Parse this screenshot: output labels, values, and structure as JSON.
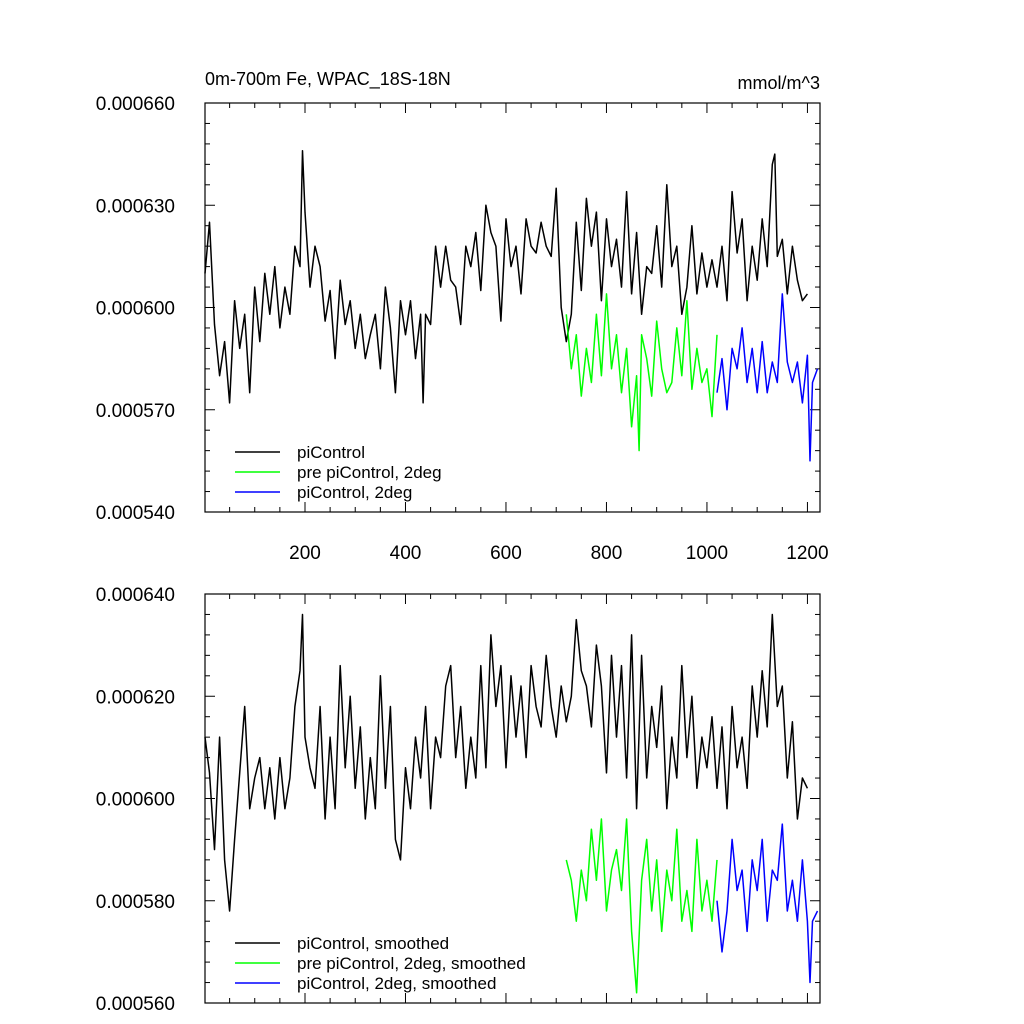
{
  "chart_data": [
    {
      "type": "line",
      "title": "0m-700m Fe, WPAC_18S-18N",
      "units": "mmol/m^3",
      "xlim": [
        1,
        1225
      ],
      "ylim": [
        0.00054,
        0.00066
      ],
      "xticks": [
        200,
        400,
        600,
        800,
        1000,
        1200
      ],
      "xticks_labeled": true,
      "yticks": [
        0.00054,
        0.00057,
        0.0006,
        0.00063,
        0.00066
      ],
      "ytick_labels": [
        "0.000540",
        "0.000570",
        "0.000600",
        "0.000630",
        "0.000660"
      ],
      "legend": {
        "placement": "bottom-left"
      },
      "series": [
        {
          "name": "piControl",
          "color": "#000000",
          "x": [
            1,
            10,
            20,
            30,
            40,
            50,
            60,
            70,
            80,
            90,
            100,
            110,
            120,
            130,
            140,
            150,
            160,
            170,
            180,
            190,
            195,
            200,
            210,
            220,
            230,
            240,
            250,
            260,
            270,
            280,
            290,
            300,
            310,
            320,
            330,
            340,
            350,
            360,
            370,
            380,
            390,
            400,
            410,
            420,
            430,
            435,
            440,
            450,
            460,
            470,
            480,
            490,
            500,
            510,
            520,
            530,
            540,
            550,
            560,
            570,
            580,
            590,
            600,
            610,
            620,
            630,
            640,
            650,
            660,
            670,
            680,
            690,
            700,
            710,
            720,
            730,
            740,
            750,
            760,
            770,
            780,
            790,
            800,
            810,
            820,
            830,
            840,
            850,
            860,
            870,
            880,
            890,
            900,
            910,
            920,
            930,
            940,
            950,
            960,
            970,
            980,
            990,
            1000,
            1010,
            1020,
            1030,
            1040,
            1050,
            1060,
            1070,
            1080,
            1090,
            1100,
            1110,
            1120,
            1130,
            1135,
            1140,
            1150,
            1160,
            1170,
            1180,
            1190,
            1200
          ],
          "y": [
            0.00061,
            0.000625,
            0.000595,
            0.00058,
            0.00059,
            0.000572,
            0.000602,
            0.000588,
            0.000598,
            0.000575,
            0.000606,
            0.00059,
            0.00061,
            0.000598,
            0.000612,
            0.000594,
            0.000606,
            0.000598,
            0.000618,
            0.000612,
            0.000646,
            0.000628,
            0.000606,
            0.000618,
            0.000612,
            0.000596,
            0.000605,
            0.000585,
            0.000608,
            0.000595,
            0.000602,
            0.000588,
            0.000598,
            0.000585,
            0.000592,
            0.000598,
            0.000582,
            0.000606,
            0.000594,
            0.000575,
            0.000602,
            0.000592,
            0.000602,
            0.000585,
            0.000598,
            0.000572,
            0.000598,
            0.000595,
            0.000618,
            0.000606,
            0.000618,
            0.000608,
            0.000606,
            0.000595,
            0.000618,
            0.000612,
            0.000622,
            0.000605,
            0.00063,
            0.000622,
            0.000618,
            0.000596,
            0.000626,
            0.000612,
            0.000618,
            0.000604,
            0.000626,
            0.000618,
            0.000616,
            0.000625,
            0.000618,
            0.000615,
            0.000635,
            0.0006,
            0.00059,
            0.000598,
            0.000625,
            0.000605,
            0.000632,
            0.000618,
            0.000628,
            0.000602,
            0.000626,
            0.000612,
            0.00062,
            0.000606,
            0.000634,
            0.000604,
            0.000622,
            0.000598,
            0.000612,
            0.00061,
            0.000624,
            0.000606,
            0.000636,
            0.000612,
            0.000618,
            0.000598,
            0.000606,
            0.000624,
            0.000604,
            0.000616,
            0.000606,
            0.000614,
            0.000606,
            0.000618,
            0.000602,
            0.000634,
            0.000616,
            0.000626,
            0.000602,
            0.000618,
            0.000608,
            0.000626,
            0.000612,
            0.000642,
            0.000645,
            0.000615,
            0.00062,
            0.000604,
            0.000618,
            0.000608,
            0.000602,
            0.000604
          ]
        },
        {
          "name": "pre piControl, 2deg",
          "color": "#00ff00",
          "x": [
            720,
            730,
            740,
            750,
            760,
            770,
            780,
            790,
            800,
            810,
            820,
            830,
            840,
            850,
            860,
            865,
            870,
            880,
            890,
            900,
            910,
            920,
            930,
            940,
            950,
            960,
            970,
            980,
            990,
            1000,
            1010,
            1020
          ],
          "y": [
            0.000598,
            0.000582,
            0.000592,
            0.000574,
            0.000588,
            0.000578,
            0.000598,
            0.00058,
            0.000604,
            0.000582,
            0.000592,
            0.000575,
            0.000588,
            0.000565,
            0.00058,
            0.000558,
            0.000592,
            0.000585,
            0.000574,
            0.000596,
            0.000582,
            0.000575,
            0.000578,
            0.000594,
            0.00058,
            0.000602,
            0.000576,
            0.000588,
            0.000578,
            0.000582,
            0.000568,
            0.000592
          ]
        },
        {
          "name": "piControl, 2deg",
          "color": "#0000ff",
          "x": [
            1020,
            1030,
            1040,
            1050,
            1060,
            1070,
            1080,
            1090,
            1100,
            1110,
            1120,
            1130,
            1140,
            1150,
            1160,
            1170,
            1180,
            1190,
            1200,
            1205,
            1210,
            1220
          ],
          "y": [
            0.000575,
            0.000585,
            0.00057,
            0.000588,
            0.000582,
            0.000594,
            0.000578,
            0.000588,
            0.000575,
            0.00059,
            0.000575,
            0.000584,
            0.000578,
            0.000604,
            0.000584,
            0.000578,
            0.000584,
            0.000572,
            0.000586,
            0.000555,
            0.000578,
            0.000582
          ]
        }
      ]
    },
    {
      "type": "line",
      "title": "",
      "units": "",
      "xlim": [
        1,
        1225
      ],
      "ylim": [
        0.00056,
        0.00064
      ],
      "xticks": [
        200,
        400,
        600,
        800,
        1000,
        1200
      ],
      "xticks_labeled": false,
      "yticks": [
        0.00056,
        0.00058,
        0.0006,
        0.00062,
        0.00064
      ],
      "ytick_labels": [
        "0.000560",
        "0.000580",
        "0.000600",
        "0.000620",
        "0.000640"
      ],
      "legend": {
        "placement": "bottom-left"
      },
      "series": [
        {
          "name": "piControl, smoothed",
          "color": "#000000",
          "x": [
            1,
            10,
            20,
            30,
            40,
            50,
            60,
            70,
            80,
            90,
            100,
            110,
            120,
            130,
            140,
            150,
            160,
            170,
            180,
            190,
            195,
            200,
            210,
            220,
            230,
            240,
            250,
            260,
            270,
            280,
            290,
            300,
            310,
            320,
            330,
            340,
            350,
            360,
            370,
            380,
            390,
            400,
            410,
            420,
            430,
            440,
            450,
            460,
            470,
            480,
            490,
            500,
            510,
            520,
            530,
            540,
            550,
            560,
            570,
            580,
            590,
            600,
            610,
            620,
            630,
            640,
            650,
            660,
            670,
            680,
            690,
            700,
            710,
            720,
            730,
            740,
            750,
            760,
            770,
            780,
            790,
            800,
            810,
            820,
            830,
            840,
            850,
            860,
            870,
            880,
            890,
            900,
            910,
            920,
            930,
            940,
            950,
            960,
            970,
            980,
            990,
            1000,
            1010,
            1020,
            1030,
            1040,
            1050,
            1060,
            1070,
            1080,
            1090,
            1100,
            1110,
            1120,
            1130,
            1140,
            1150,
            1160,
            1170,
            1180,
            1190,
            1200
          ],
          "y": [
            0.000612,
            0.000605,
            0.00059,
            0.000612,
            0.000588,
            0.000578,
            0.000592,
            0.000605,
            0.000618,
            0.000598,
            0.000604,
            0.000608,
            0.000598,
            0.000606,
            0.000596,
            0.000608,
            0.000598,
            0.000604,
            0.000618,
            0.000625,
            0.000636,
            0.000612,
            0.000606,
            0.000602,
            0.000618,
            0.000596,
            0.000612,
            0.000598,
            0.000626,
            0.000606,
            0.00062,
            0.000602,
            0.000614,
            0.000596,
            0.000608,
            0.000598,
            0.000624,
            0.000602,
            0.000618,
            0.000592,
            0.000588,
            0.000606,
            0.000598,
            0.000612,
            0.000604,
            0.000618,
            0.000598,
            0.000612,
            0.000608,
            0.000622,
            0.000626,
            0.000608,
            0.000618,
            0.000602,
            0.000612,
            0.000604,
            0.000626,
            0.000606,
            0.000632,
            0.000618,
            0.000626,
            0.000606,
            0.000624,
            0.000612,
            0.000622,
            0.000608,
            0.000626,
            0.000618,
            0.000614,
            0.000628,
            0.000618,
            0.000612,
            0.000622,
            0.000615,
            0.00062,
            0.000635,
            0.000625,
            0.000622,
            0.000614,
            0.00063,
            0.000622,
            0.000605,
            0.000628,
            0.000612,
            0.000626,
            0.000604,
            0.000632,
            0.000598,
            0.000628,
            0.000604,
            0.000618,
            0.00061,
            0.000622,
            0.000598,
            0.000612,
            0.000604,
            0.000626,
            0.000608,
            0.00062,
            0.000602,
            0.000612,
            0.000606,
            0.000616,
            0.000602,
            0.000614,
            0.000598,
            0.000618,
            0.000606,
            0.000612,
            0.000602,
            0.000622,
            0.000612,
            0.000625,
            0.000614,
            0.000636,
            0.000618,
            0.000622,
            0.000604,
            0.000615,
            0.000596,
            0.000604,
            0.000602
          ]
        },
        {
          "name": "pre piControl, 2deg, smoothed",
          "color": "#00ff00",
          "x": [
            720,
            730,
            740,
            750,
            760,
            770,
            780,
            790,
            800,
            810,
            820,
            830,
            840,
            850,
            860,
            870,
            880,
            890,
            900,
            910,
            920,
            930,
            940,
            950,
            960,
            970,
            980,
            990,
            1000,
            1010,
            1020
          ],
          "y": [
            0.000588,
            0.000584,
            0.000576,
            0.000586,
            0.00058,
            0.000594,
            0.000584,
            0.000596,
            0.000578,
            0.000586,
            0.00059,
            0.000582,
            0.000596,
            0.000574,
            0.000562,
            0.000584,
            0.000592,
            0.000578,
            0.000588,
            0.000574,
            0.000586,
            0.00058,
            0.000594,
            0.000576,
            0.000582,
            0.000574,
            0.000592,
            0.000578,
            0.000584,
            0.000576,
            0.000588
          ]
        },
        {
          "name": "piControl, 2deg, smoothed",
          "color": "#0000ff",
          "x": [
            1020,
            1030,
            1040,
            1050,
            1060,
            1070,
            1080,
            1090,
            1100,
            1110,
            1120,
            1130,
            1140,
            1150,
            1160,
            1170,
            1180,
            1190,
            1200,
            1205,
            1210,
            1220
          ],
          "y": [
            0.00058,
            0.00057,
            0.000578,
            0.000592,
            0.000582,
            0.000586,
            0.000574,
            0.000588,
            0.000582,
            0.000592,
            0.000576,
            0.000586,
            0.000584,
            0.000595,
            0.000578,
            0.000584,
            0.000576,
            0.000588,
            0.000576,
            0.000564,
            0.000576,
            0.000578
          ]
        }
      ]
    }
  ]
}
